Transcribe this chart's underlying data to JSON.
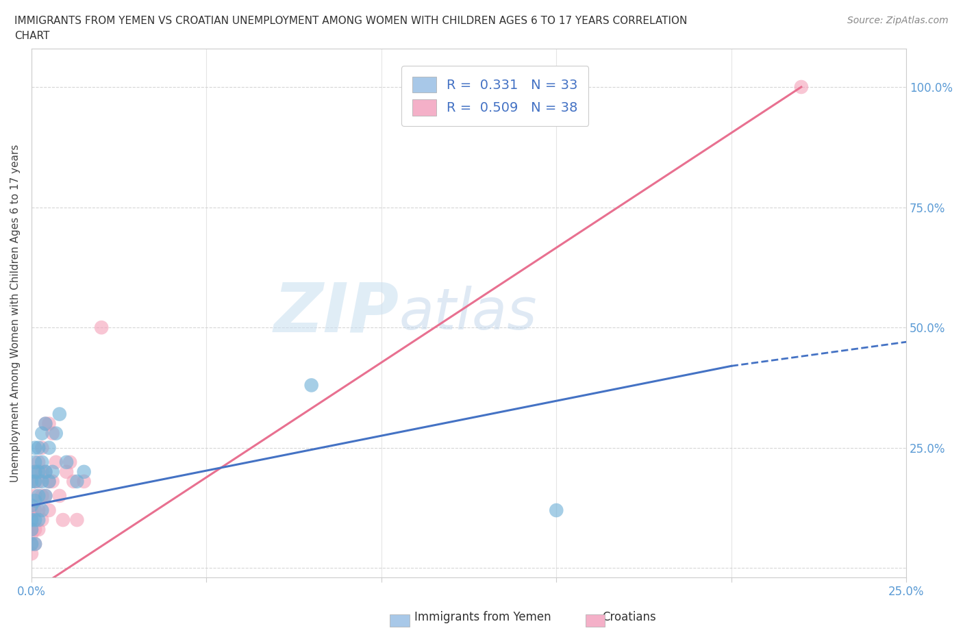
{
  "title_line1": "IMMIGRANTS FROM YEMEN VS CROATIAN UNEMPLOYMENT AMONG WOMEN WITH CHILDREN AGES 6 TO 17 YEARS CORRELATION",
  "title_line2": "CHART",
  "source": "Source: ZipAtlas.com",
  "ylabel": "Unemployment Among Women with Children Ages 6 to 17 years",
  "xlim": [
    0.0,
    0.25
  ],
  "ylim": [
    -0.02,
    1.08
  ],
  "xticks": [
    0.0,
    0.05,
    0.1,
    0.15,
    0.2,
    0.25
  ],
  "xticklabels": [
    "0.0%",
    "",
    "",
    "",
    "",
    "25.0%"
  ],
  "yticks": [
    0.0,
    0.25,
    0.5,
    0.75,
    1.0
  ],
  "yticklabels_left": [
    "",
    "",
    "",
    "",
    ""
  ],
  "yticklabels_right": [
    "",
    "25.0%",
    "50.0%",
    "75.0%",
    "100.0%"
  ],
  "legend_R1": "R =  0.331   N = 33",
  "legend_R2": "R =  0.509   N = 38",
  "legend_color1": "#a8c8e8",
  "legend_color2": "#f4b0c8",
  "watermark_zip": "ZIP",
  "watermark_atlas": "atlas",
  "yemen_color": "#6baed6",
  "croatian_color": "#f4a0b8",
  "yemen_line_color": "#4472c4",
  "croatian_line_color": "#e87090",
  "background_color": "#ffffff",
  "grid_color": "#cccccc",
  "yemen_x": [
    0.0,
    0.0,
    0.0,
    0.0,
    0.0,
    0.001,
    0.001,
    0.001,
    0.001,
    0.001,
    0.001,
    0.001,
    0.002,
    0.002,
    0.002,
    0.002,
    0.003,
    0.003,
    0.003,
    0.003,
    0.004,
    0.004,
    0.004,
    0.005,
    0.005,
    0.006,
    0.007,
    0.008,
    0.01,
    0.013,
    0.015,
    0.08,
    0.15
  ],
  "yemen_y": [
    0.05,
    0.08,
    0.1,
    0.13,
    0.18,
    0.05,
    0.1,
    0.14,
    0.18,
    0.2,
    0.22,
    0.25,
    0.1,
    0.15,
    0.2,
    0.25,
    0.12,
    0.18,
    0.22,
    0.28,
    0.15,
    0.2,
    0.3,
    0.18,
    0.25,
    0.2,
    0.28,
    0.32,
    0.22,
    0.18,
    0.2,
    0.38,
    0.12
  ],
  "croatian_x": [
    0.0,
    0.0,
    0.0,
    0.0,
    0.0,
    0.0,
    0.001,
    0.001,
    0.001,
    0.001,
    0.001,
    0.001,
    0.002,
    0.002,
    0.002,
    0.002,
    0.003,
    0.003,
    0.003,
    0.003,
    0.004,
    0.004,
    0.004,
    0.005,
    0.005,
    0.005,
    0.006,
    0.006,
    0.007,
    0.008,
    0.009,
    0.01,
    0.011,
    0.012,
    0.013,
    0.015,
    0.02,
    0.22
  ],
  "croatian_y": [
    0.03,
    0.05,
    0.07,
    0.08,
    0.1,
    0.12,
    0.05,
    0.08,
    0.12,
    0.15,
    0.18,
    0.2,
    0.08,
    0.12,
    0.18,
    0.22,
    0.1,
    0.15,
    0.2,
    0.25,
    0.15,
    0.2,
    0.3,
    0.12,
    0.18,
    0.3,
    0.18,
    0.28,
    0.22,
    0.15,
    0.1,
    0.2,
    0.22,
    0.18,
    0.1,
    0.18,
    0.5,
    1.0
  ]
}
